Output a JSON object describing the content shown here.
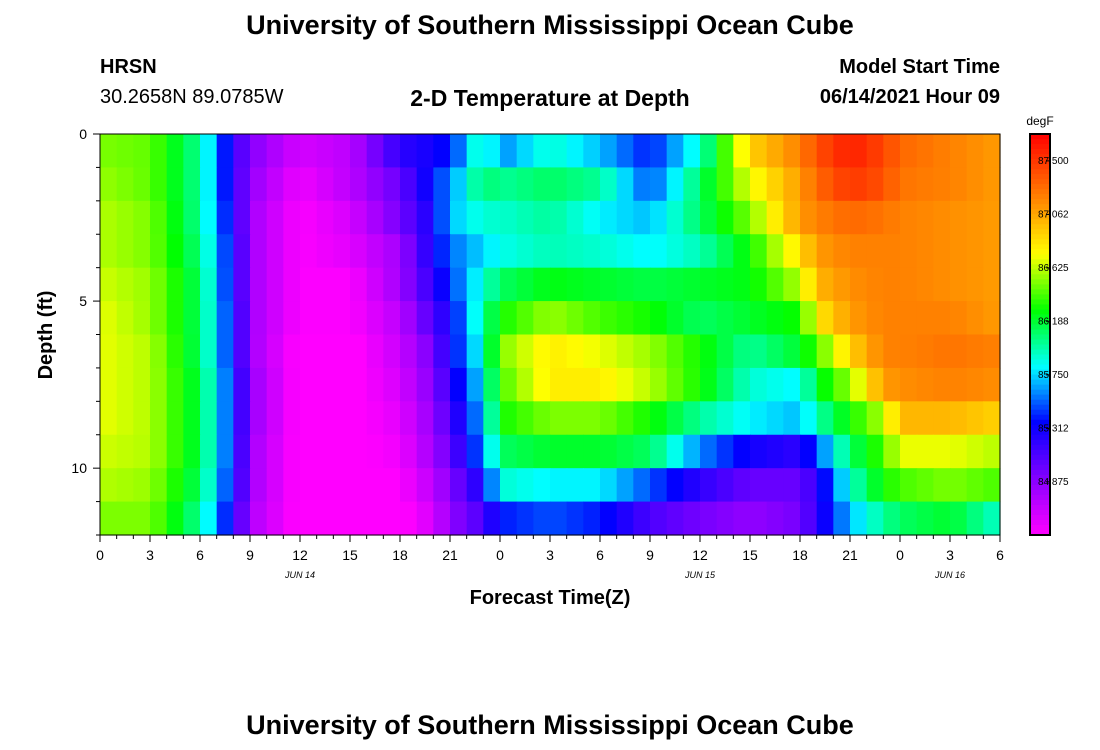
{
  "page": {
    "title_top": "University of Southern Mississippi Ocean Cube",
    "title_bottom": "University of Southern Mississippi Ocean Cube",
    "station_name": "HRSN",
    "station_coords": "30.2658N  89.0785W",
    "plot_title": "2-D Temperature at Depth",
    "model_start_label": "Model Start Time",
    "model_start_value": "06/14/2021 Hour 09"
  },
  "chart_data": {
    "type": "heatmap",
    "title": "2-D Temperature at Depth",
    "xlabel": "Forecast Time(Z)",
    "ylabel": "Depth (ft)",
    "x_tick_labels": [
      "0",
      "3",
      "6",
      "9",
      "12",
      "15",
      "18",
      "21",
      "0",
      "3",
      "6",
      "9",
      "12",
      "15",
      "18",
      "21",
      "0",
      "3",
      "6"
    ],
    "date_labels": [
      "JUN 14",
      "JUN 15",
      "JUN 16"
    ],
    "y_tick_labels": [
      "0",
      "5",
      "10"
    ],
    "y_range": [
      0,
      12
    ],
    "x_range_hours": [
      0,
      54
    ],
    "colorbar": {
      "unit": "degF",
      "tick_labels": [
        "87.500",
        "87.062",
        "86.625",
        "86.188",
        "85.750",
        "85.312",
        "84.875"
      ],
      "min": 84.44,
      "max": 87.72
    },
    "depths": [
      0.5,
      1.5,
      2.5,
      3.5,
      4.5,
      5.5,
      6.5,
      7.5,
      8.5,
      9.5,
      10.5,
      11.5
    ],
    "key_times_hours": [
      0,
      3,
      6,
      8,
      9,
      12,
      15,
      18,
      20,
      21,
      23,
      24,
      27,
      30,
      33,
      36,
      39,
      42,
      43,
      45,
      47,
      48,
      51,
      54
    ],
    "values": [
      [
        86.5,
        86.45,
        86.0,
        85.2,
        84.9,
        84.6,
        84.7,
        85.2,
        85.3,
        85.4,
        86.0,
        85.6,
        85.9,
        85.7,
        85.4,
        85.9,
        86.9,
        87.2,
        87.4,
        87.6,
        87.45,
        87.3,
        87.2,
        87.1
      ],
      [
        86.55,
        86.45,
        86.0,
        85.2,
        84.85,
        84.5,
        84.7,
        85.0,
        85.4,
        85.6,
        86.1,
        86.0,
        86.1,
        86.0,
        85.5,
        86.1,
        86.7,
        87.1,
        87.3,
        87.5,
        87.4,
        87.25,
        87.2,
        87.1
      ],
      [
        86.6,
        86.5,
        86.0,
        85.25,
        84.8,
        84.45,
        84.6,
        84.95,
        85.3,
        85.7,
        85.9,
        85.9,
        86.0,
        85.8,
        85.7,
        86.1,
        86.5,
        87.1,
        87.2,
        87.3,
        87.25,
        87.2,
        87.15,
        87.1
      ],
      [
        86.6,
        86.5,
        86.05,
        85.3,
        84.8,
        84.45,
        84.55,
        84.8,
        85.3,
        85.55,
        85.75,
        85.85,
        85.95,
        85.9,
        85.8,
        85.95,
        86.3,
        86.85,
        87.1,
        87.2,
        87.2,
        87.2,
        87.15,
        87.1
      ],
      [
        86.65,
        86.55,
        86.1,
        85.3,
        84.8,
        84.45,
        84.45,
        84.8,
        85.2,
        85.45,
        85.9,
        86.1,
        86.25,
        86.2,
        86.15,
        86.2,
        86.25,
        86.6,
        87.0,
        87.15,
        87.2,
        87.2,
        87.15,
        87.1
      ],
      [
        86.7,
        86.55,
        86.1,
        85.35,
        84.8,
        84.45,
        84.45,
        84.7,
        85.1,
        85.3,
        86.0,
        86.3,
        86.55,
        86.4,
        86.3,
        86.1,
        86.2,
        86.3,
        86.8,
        87.1,
        87.2,
        87.2,
        87.2,
        87.1
      ],
      [
        86.7,
        86.6,
        86.1,
        85.35,
        84.8,
        84.4,
        84.4,
        84.65,
        84.95,
        85.3,
        85.9,
        86.5,
        86.8,
        86.7,
        86.55,
        86.3,
        86.0,
        86.2,
        86.4,
        86.9,
        87.2,
        87.2,
        87.25,
        87.2
      ],
      [
        86.7,
        86.6,
        86.15,
        85.4,
        84.85,
        84.4,
        84.4,
        84.6,
        84.9,
        85.2,
        85.8,
        86.4,
        86.8,
        86.8,
        86.6,
        86.3,
        85.9,
        85.8,
        86.2,
        86.55,
        87.1,
        87.15,
        87.2,
        87.15
      ],
      [
        86.7,
        86.6,
        86.15,
        85.4,
        84.85,
        84.4,
        84.4,
        84.55,
        84.85,
        85.1,
        85.7,
        86.3,
        86.5,
        86.5,
        86.3,
        86.0,
        85.8,
        85.7,
        85.95,
        86.3,
        86.6,
        87.0,
        87.0,
        86.9
      ],
      [
        86.65,
        86.6,
        86.15,
        85.4,
        84.8,
        84.4,
        84.4,
        84.5,
        84.8,
        85.0,
        85.6,
        86.1,
        86.2,
        86.2,
        86.1,
        85.6,
        85.3,
        85.2,
        85.5,
        86.1,
        86.4,
        86.7,
        86.7,
        86.6
      ],
      [
        86.6,
        86.55,
        86.1,
        85.35,
        84.8,
        84.4,
        84.4,
        84.45,
        84.7,
        84.9,
        85.3,
        85.9,
        85.8,
        85.8,
        85.5,
        85.2,
        85.0,
        85.0,
        85.2,
        85.9,
        86.3,
        86.4,
        86.5,
        86.4
      ],
      [
        86.5,
        86.5,
        86.0,
        85.25,
        84.75,
        84.4,
        84.4,
        84.4,
        84.6,
        84.85,
        85.1,
        85.4,
        85.5,
        85.4,
        85.1,
        84.95,
        84.85,
        84.95,
        85.2,
        85.7,
        86.0,
        86.1,
        86.2,
        85.9
      ]
    ]
  }
}
